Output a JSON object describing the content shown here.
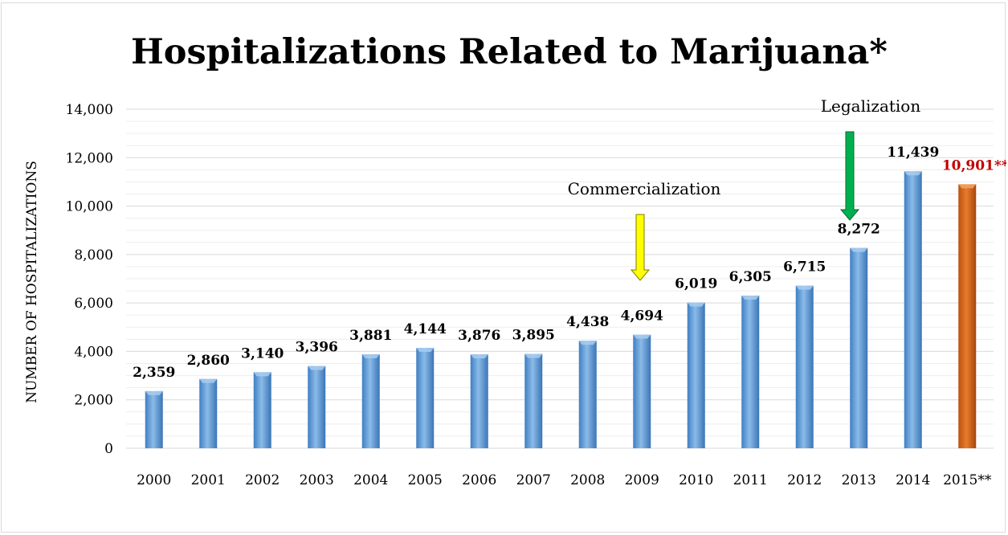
{
  "chart_data": {
    "type": "bar",
    "title": "Hospitalizations Related to Marijuana*",
    "xlabel": "",
    "ylabel": "NUMBER OF HOSPITALIZATIONS",
    "ylim": [
      0,
      14000
    ],
    "yticks": [
      "0",
      "2,000",
      "4,000",
      "6,000",
      "8,000",
      "10,000",
      "12,000",
      "14,000"
    ],
    "grid": true,
    "categories": [
      "2000",
      "2001",
      "2002",
      "2003",
      "2004",
      "2005",
      "2006",
      "2007",
      "2008",
      "2009",
      "2010",
      "2011",
      "2012",
      "2013",
      "2014",
      "2015**"
    ],
    "values": [
      2359,
      2860,
      3140,
      3396,
      3881,
      4144,
      3876,
      3895,
      4438,
      4694,
      6019,
      6305,
      6715,
      8272,
      11439,
      10901
    ],
    "data_labels": [
      "2,359",
      "2,860",
      "3,140",
      "3,396",
      "3,881",
      "4,144",
      "3,876",
      "3,895",
      "4,438",
      "4,694",
      "6,019",
      "6,305",
      "6,715",
      "8,272",
      "11,439",
      "10,901**"
    ],
    "colors": {
      "bar": "#5b9bd5",
      "bar_dark": "#2e6db2",
      "highlight_bar": "#c55a11",
      "highlight_dark": "#843c0c",
      "highlight_label": "#c00000",
      "grid": "#d9d9d9"
    },
    "highlight_index": 15,
    "annotations": [
      {
        "text": "Commercialization",
        "category_index": 9,
        "arrow_color": "#ffff00",
        "arrow_stroke": "#7f7f00"
      },
      {
        "text": "Legalization",
        "category_index": 13,
        "arrow_color": "#00b050",
        "arrow_stroke": "#006b30"
      }
    ]
  }
}
